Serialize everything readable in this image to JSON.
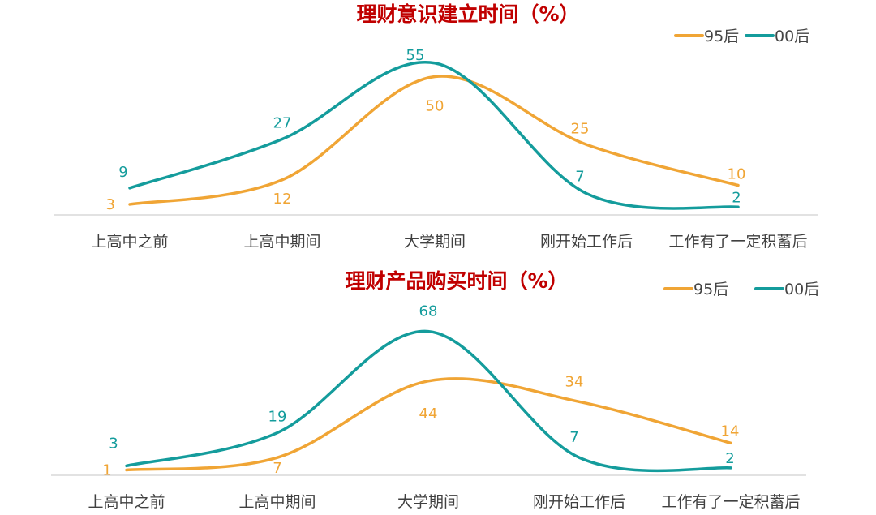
{
  "colors": {
    "title": "#c00000",
    "series_95": "#f0a535",
    "series_00": "#149c9c",
    "axis": "#d0d0d0",
    "tick_text": "#404040"
  },
  "chart_data": [
    {
      "type": "line",
      "title": "理财意识建立时间（%）",
      "categories": [
        "上高中之前",
        "上高中期间",
        "大学期间",
        "刚开始工作后",
        "工作有了一定积蓄后"
      ],
      "series": [
        {
          "name": "95后",
          "values": [
            3,
            12,
            50,
            25,
            10
          ]
        },
        {
          "name": "00后",
          "values": [
            9,
            27,
            55,
            7,
            2
          ]
        }
      ],
      "legend_position": "top-right",
      "grid": false,
      "smooth": true
    },
    {
      "type": "line",
      "title": "理财产品购买时间（%）",
      "categories": [
        "上高中之前",
        "上高中期间",
        "大学期间",
        "刚开始工作后",
        "工作有了一定积蓄后"
      ],
      "series": [
        {
          "name": "95后",
          "values": [
            1,
            7,
            44,
            34,
            14
          ]
        },
        {
          "name": "00后",
          "values": [
            3,
            19,
            68,
            7,
            2
          ]
        }
      ],
      "legend_position": "top-right",
      "grid": false,
      "smooth": true
    }
  ]
}
